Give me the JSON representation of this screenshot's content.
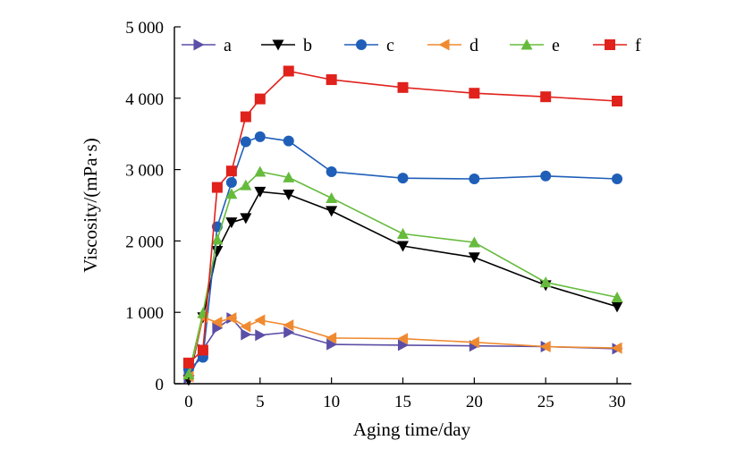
{
  "chart_data": {
    "type": "line",
    "title": "",
    "xlabel": "Aging time/day",
    "ylabel": "Viscosity/(mPa·s)",
    "xlim": [
      -1,
      31
    ],
    "ylim": [
      0,
      5000
    ],
    "xticks": [
      0,
      5,
      10,
      15,
      20,
      25,
      30
    ],
    "xtick_labels": [
      "0",
      "5",
      "10",
      "15",
      "20",
      "25",
      "30"
    ],
    "yticks": [
      0,
      1000,
      2000,
      3000,
      4000,
      5000
    ],
    "ytick_labels": [
      "0",
      "1 000",
      "2 000",
      "3 000",
      "4 000",
      "5 000"
    ],
    "grid": false,
    "legend_position": "top",
    "series": [
      {
        "name": "a",
        "color": "#5b4ea6",
        "marker": "triangle-right",
        "x": [
          0,
          1,
          2,
          3,
          4,
          5,
          7,
          10,
          15,
          20,
          25,
          30
        ],
        "y": [
          80,
          480,
          780,
          920,
          690,
          680,
          720,
          550,
          540,
          530,
          520,
          490
        ]
      },
      {
        "name": "b",
        "color": "#000000",
        "marker": "triangle-down",
        "x": [
          0,
          1,
          2,
          3,
          4,
          5,
          7,
          10,
          15,
          20,
          25,
          30
        ],
        "y": [
          50,
          930,
          1860,
          2260,
          2320,
          2690,
          2650,
          2420,
          1930,
          1770,
          1380,
          1080
        ]
      },
      {
        "name": "c",
        "color": "#1f5fb8",
        "marker": "circle",
        "x": [
          0,
          1,
          2,
          3,
          4,
          5,
          7,
          10,
          15,
          20,
          25,
          30
        ],
        "y": [
          200,
          370,
          2200,
          2820,
          3390,
          3460,
          3400,
          2970,
          2880,
          2870,
          2910,
          2870
        ]
      },
      {
        "name": "d",
        "color": "#f08a30",
        "marker": "triangle-left",
        "x": [
          0,
          1,
          2,
          3,
          4,
          5,
          7,
          10,
          15,
          20,
          25,
          30
        ],
        "y": [
          100,
          930,
          860,
          920,
          800,
          890,
          820,
          640,
          630,
          580,
          520,
          500
        ]
      },
      {
        "name": "e",
        "color": "#66bb3c",
        "marker": "triangle-up",
        "x": [
          0,
          1,
          2,
          3,
          4,
          5,
          7,
          10,
          15,
          20,
          25,
          30
        ],
        "y": [
          130,
          990,
          2020,
          2660,
          2780,
          2970,
          2890,
          2600,
          2100,
          1980,
          1420,
          1210
        ]
      },
      {
        "name": "f",
        "color": "#e0211c",
        "marker": "square",
        "x": [
          0,
          1,
          2,
          3,
          4,
          5,
          7,
          10,
          15,
          20,
          25,
          30
        ],
        "y": [
          290,
          470,
          2750,
          2980,
          3740,
          3990,
          4380,
          4260,
          4150,
          4070,
          4020,
          3960
        ]
      }
    ]
  }
}
